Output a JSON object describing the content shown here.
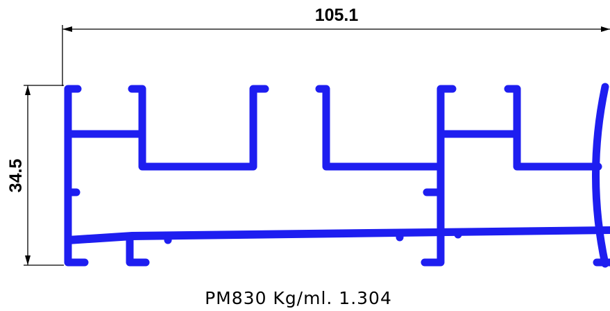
{
  "dimensions": {
    "width": "105.1",
    "height": "34.5"
  },
  "caption": "PM830 Kg/ml. 1.304"
}
